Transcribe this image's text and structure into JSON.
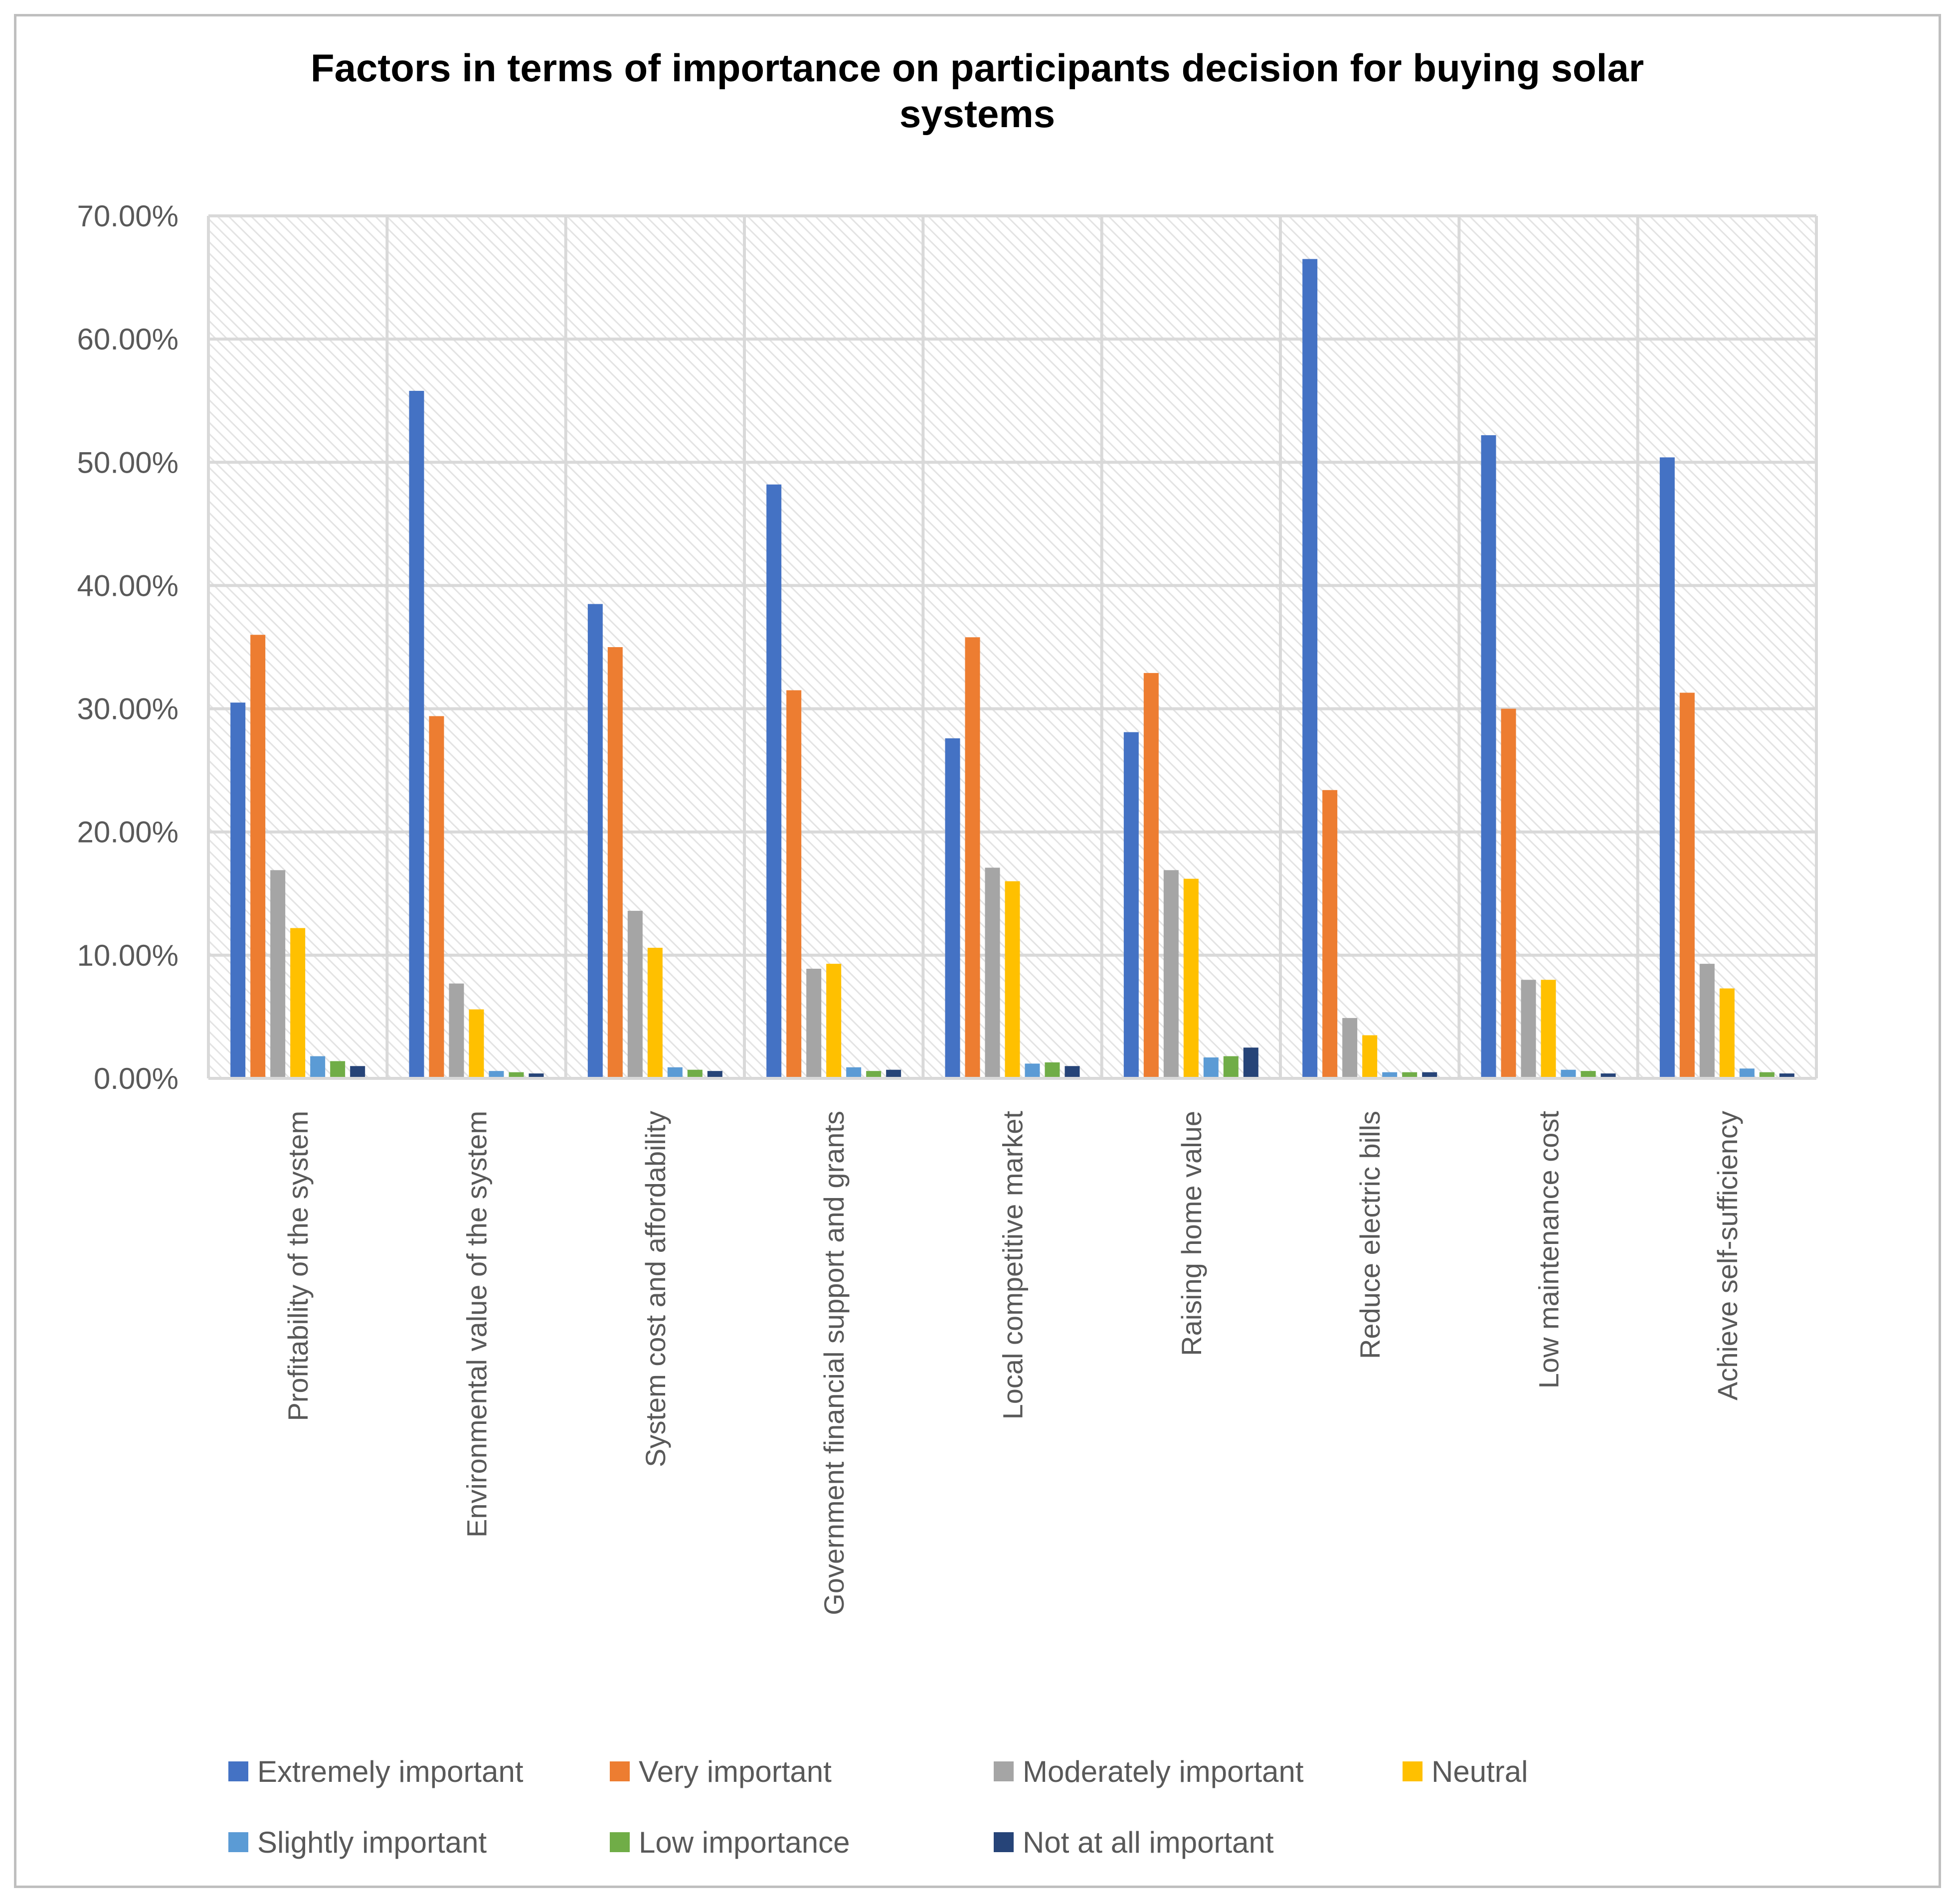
{
  "chart_data": {
    "type": "bar",
    "title_lines": [
      "Factors in terms of importance on participants decision for buying solar",
      "systems"
    ],
    "categories": [
      "Profitability of the system",
      "Environmental value of the system",
      "System cost and affordability",
      "Government financial support and grants",
      "Local competitive market",
      "Raising home value",
      "Reduce electric bills",
      "Low maintenance cost",
      "Achieve self-sufficiency"
    ],
    "series": [
      {
        "name": "Extremely important",
        "color": "#4472C4",
        "values": [
          30.5,
          55.8,
          38.5,
          48.2,
          27.6,
          28.1,
          66.5,
          52.2,
          50.4
        ]
      },
      {
        "name": "Very important",
        "color": "#ED7D31",
        "values": [
          36.0,
          29.4,
          35.0,
          31.5,
          35.8,
          32.9,
          23.4,
          30.0,
          31.3
        ]
      },
      {
        "name": "Moderately important",
        "color": "#A5A5A5",
        "values": [
          16.9,
          7.7,
          13.6,
          8.9,
          17.1,
          16.9,
          4.9,
          8.0,
          9.3
        ]
      },
      {
        "name": "Neutral",
        "color": "#FFC000",
        "values": [
          12.2,
          5.6,
          10.6,
          9.3,
          16.0,
          16.2,
          3.5,
          8.0,
          7.3
        ]
      },
      {
        "name": "Slightly important",
        "color": "#5B9BD5",
        "values": [
          1.8,
          0.6,
          0.9,
          0.9,
          1.2,
          1.7,
          0.5,
          0.7,
          0.8
        ]
      },
      {
        "name": "Low importance",
        "color": "#70AD47",
        "values": [
          1.4,
          0.5,
          0.7,
          0.6,
          1.3,
          1.8,
          0.5,
          0.6,
          0.5
        ]
      },
      {
        "name": "Not at all important",
        "color": "#264478",
        "values": [
          1.0,
          0.4,
          0.6,
          0.7,
          1.0,
          2.5,
          0.5,
          0.4,
          0.4
        ]
      }
    ],
    "y_ticks": [
      "0.00%",
      "10.00%",
      "20.00%",
      "30.00%",
      "40.00%",
      "50.00%",
      "60.00%",
      "70.00%"
    ],
    "ylim": [
      0,
      70
    ],
    "xlabel": "",
    "ylabel": "",
    "grid": true,
    "legend_position": "bottom"
  }
}
